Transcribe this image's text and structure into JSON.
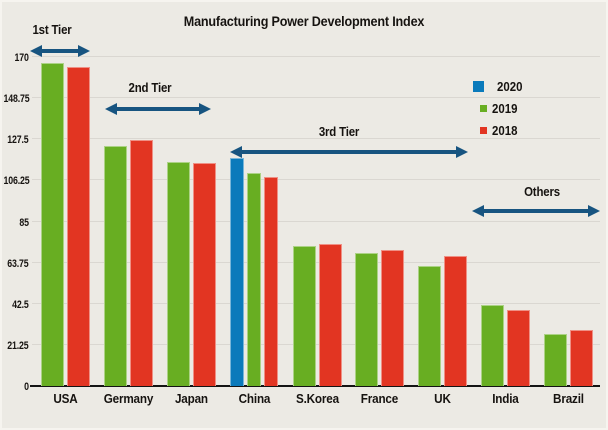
{
  "title": "Manufacturing Power Development Index",
  "colors": {
    "background": "#eceae4",
    "grid": "#dad7d1",
    "axis": "#141414",
    "text": "#161310",
    "annotation": "#175480",
    "series_2020": "#0a7abb",
    "series_2019": "#68ae22",
    "series_2018": "#e23522"
  },
  "legend": {
    "items": [
      {
        "label": "2020"
      },
      {
        "label": "2019"
      },
      {
        "label": "2018"
      }
    ]
  },
  "chart_data": {
    "type": "bar",
    "title": "Manufacturing Power Development Index",
    "categories": [
      "USA",
      "Germany",
      "Japan",
      "China",
      "S.Korea",
      "France",
      "UK",
      "India",
      "Brazil"
    ],
    "series": [
      {
        "name": "2020",
        "color": "#0a7abb",
        "values": [
          null,
          null,
          null,
          118,
          null,
          null,
          null,
          null,
          null
        ]
      },
      {
        "name": "2019",
        "color": "#68ae22",
        "values": [
          167,
          124,
          116,
          110,
          72.5,
          68.5,
          62,
          42,
          27
        ]
      },
      {
        "name": "2018",
        "color": "#e23522",
        "values": [
          165,
          127,
          115,
          108,
          73.5,
          70.5,
          67,
          39.5,
          29
        ]
      }
    ],
    "xlabel": "",
    "ylabel": "",
    "ylim": [
      0,
      170
    ],
    "yticks": [
      0,
      21.25,
      42.5,
      63.75,
      85,
      106.25,
      127.5,
      148.75,
      170
    ],
    "grid": true,
    "legend_position": "upper right",
    "annotations": [
      {
        "label": "1st Tier",
        "span": "USA"
      },
      {
        "label": "2nd Tier",
        "span": "Germany-Japan"
      },
      {
        "label": "3rd Tier",
        "span": "China-UK"
      },
      {
        "label": "Others",
        "span": "India-Brazil"
      }
    ]
  }
}
